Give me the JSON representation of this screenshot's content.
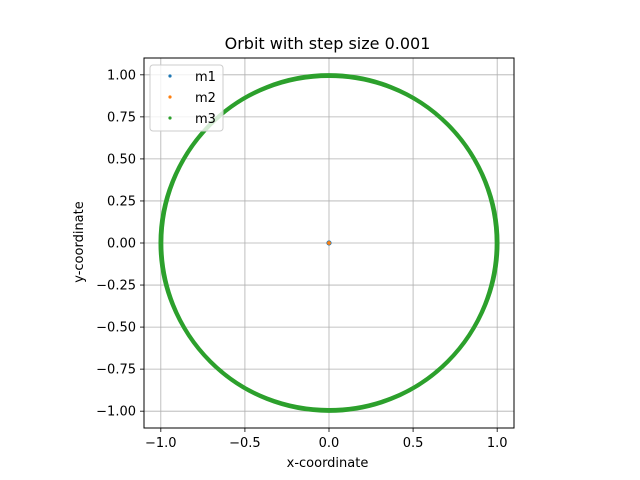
{
  "chart_data": {
    "type": "scatter",
    "title": "Orbit with step size 0.001",
    "xlabel": "x-coordinate",
    "ylabel": "y-coordinate",
    "xlim": [
      -1.1,
      1.1
    ],
    "ylim": [
      -1.1,
      1.1
    ],
    "xticks": [
      -1.0,
      -0.5,
      0.0,
      0.5,
      1.0
    ],
    "xtick_labels": [
      "−1.0",
      "−0.5",
      "0.0",
      "0.5",
      "1.0"
    ],
    "yticks": [
      -1.0,
      -0.75,
      -0.5,
      -0.25,
      0.0,
      0.25,
      0.5,
      0.75,
      1.0
    ],
    "ytick_labels": [
      "−1.00",
      "−0.75",
      "−0.50",
      "−0.25",
      "0.00",
      "0.25",
      "0.50",
      "0.75",
      "1.00"
    ],
    "grid": true,
    "legend_position": "top-left",
    "series": [
      {
        "name": "m1",
        "color": "#1f77b4",
        "shape": "point",
        "x": [
          0.0
        ],
        "y": [
          0.0
        ]
      },
      {
        "name": "m2",
        "color": "#ff7f0e",
        "shape": "point",
        "x": [
          0.0
        ],
        "y": [
          0.0
        ]
      },
      {
        "name": "m3",
        "color": "#2ca02c",
        "shape": "orbit-band",
        "center": [
          0.0,
          0.0
        ],
        "radius_min": 0.985,
        "radius_max": 1.01
      }
    ]
  }
}
